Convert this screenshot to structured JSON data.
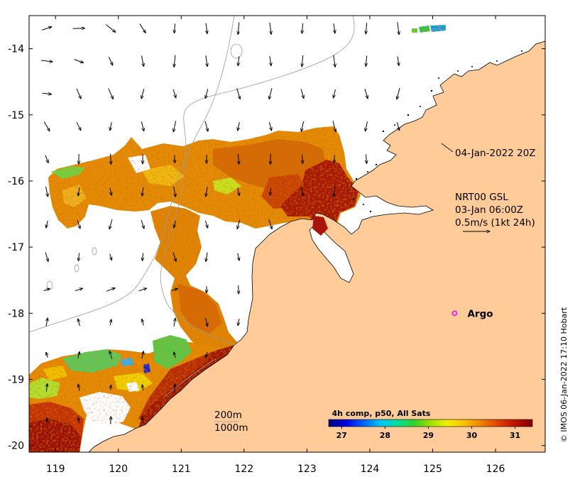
{
  "map": {
    "lon_range": [
      118.58,
      126.79
    ],
    "lat_range": [
      -20.1,
      -13.5
    ],
    "x_tick_labels": [
      "119",
      "120",
      "121",
      "122",
      "123",
      "124",
      "125",
      "126"
    ],
    "y_tick_labels": [
      "-14",
      "-15",
      "-16",
      "-17",
      "-18",
      "-19",
      "-20"
    ],
    "land_color": "#FFCC99"
  },
  "annotations": {
    "valid_time": "04-Jan-2022 20Z",
    "current_model": "NRT00 GSL",
    "current_time": "03-Jan 06:00Z",
    "current_scale": "0.5m/s (1kt 24h)",
    "argo": {
      "label": "Argo",
      "lon": 125.35,
      "lat": -18.0,
      "color": "#ff00ff"
    },
    "contour_labels": [
      "200m",
      "1000m"
    ],
    "credit": "© IMOS 06-Jan-2022 17:10 Hobart"
  },
  "colorbar": {
    "title": "4h comp, p50, All Sats",
    "range": [
      26.7,
      31.4
    ],
    "tick_labels": [
      "27",
      "28",
      "29",
      "30",
      "31"
    ],
    "colors": [
      "#00007a",
      "#0000e0",
      "#0060ff",
      "#00c0ff",
      "#00e0a0",
      "#30d030",
      "#a0e000",
      "#f0f000",
      "#f8c000",
      "#f08000",
      "#e04000",
      "#c01000",
      "#800000"
    ]
  }
}
